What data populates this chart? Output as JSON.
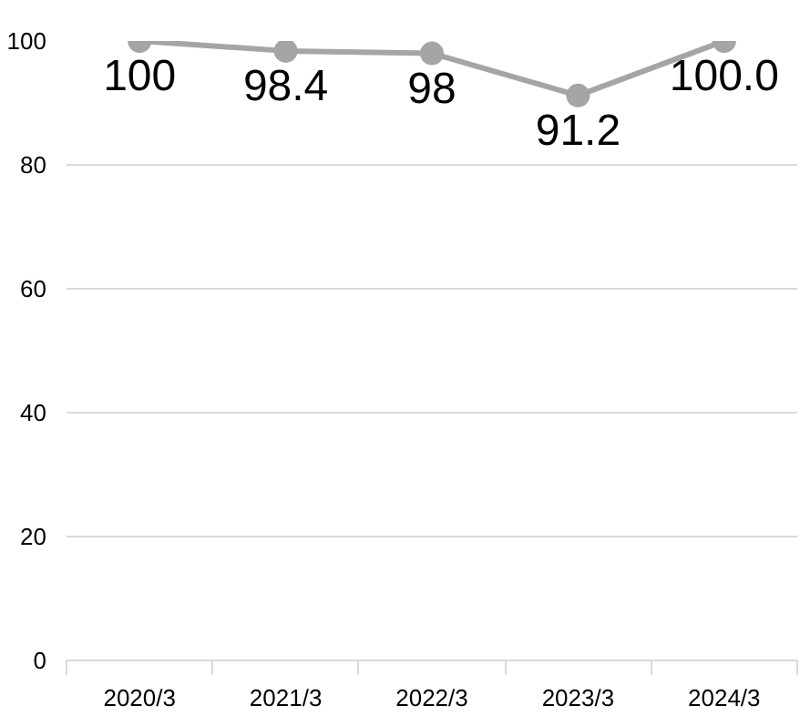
{
  "chart_data": {
    "type": "line",
    "categories": [
      "2020/3",
      "2021/3",
      "2022/3",
      "2023/3",
      "2024/3"
    ],
    "series": [
      {
        "color": "#a5a5a5",
        "values": [
          100,
          98.4,
          98,
          91.2,
          100.0
        ],
        "value_labels": [
          "100",
          "98.4",
          "98",
          "91.2",
          "100.0"
        ]
      }
    ],
    "ylim": [
      0,
      100
    ],
    "yticks": [
      0,
      20,
      40,
      60,
      80,
      100
    ],
    "grid": "y",
    "marker": "circle",
    "line_style": "solid"
  }
}
